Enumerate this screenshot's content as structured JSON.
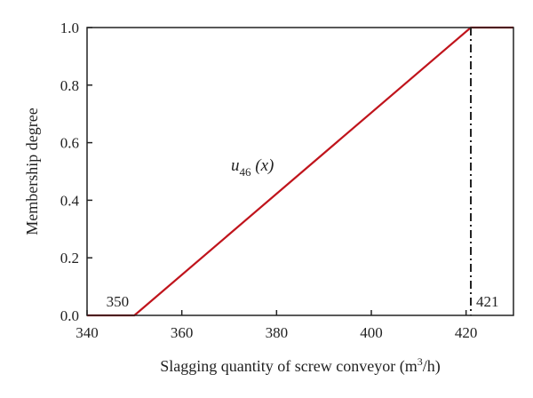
{
  "chart_data": {
    "type": "line",
    "xlabel": "Slagging quantity of screw conveyor (m",
    "xlabel_sup": "3",
    "xlabel_tail": "/h)",
    "ylabel": "Membership degree",
    "xlim": [
      340,
      430
    ],
    "ylim": [
      0,
      1
    ],
    "x_ticks": [
      340,
      360,
      380,
      400,
      420
    ],
    "y_ticks": [
      "0.0",
      "0.2",
      "0.4",
      "0.6",
      "0.8",
      "1.0"
    ],
    "grid": false,
    "series": [
      {
        "color": "#c0141c",
        "x": [
          340,
          350,
          421,
          430
        ],
        "y": [
          0,
          0,
          1,
          1
        ]
      }
    ],
    "annotations": {
      "start_label": "350",
      "end_label": "421",
      "curve_label_base": "u",
      "curve_label_sub": "46",
      "curve_label_arg": " (x)",
      "vline_x": 421
    }
  }
}
